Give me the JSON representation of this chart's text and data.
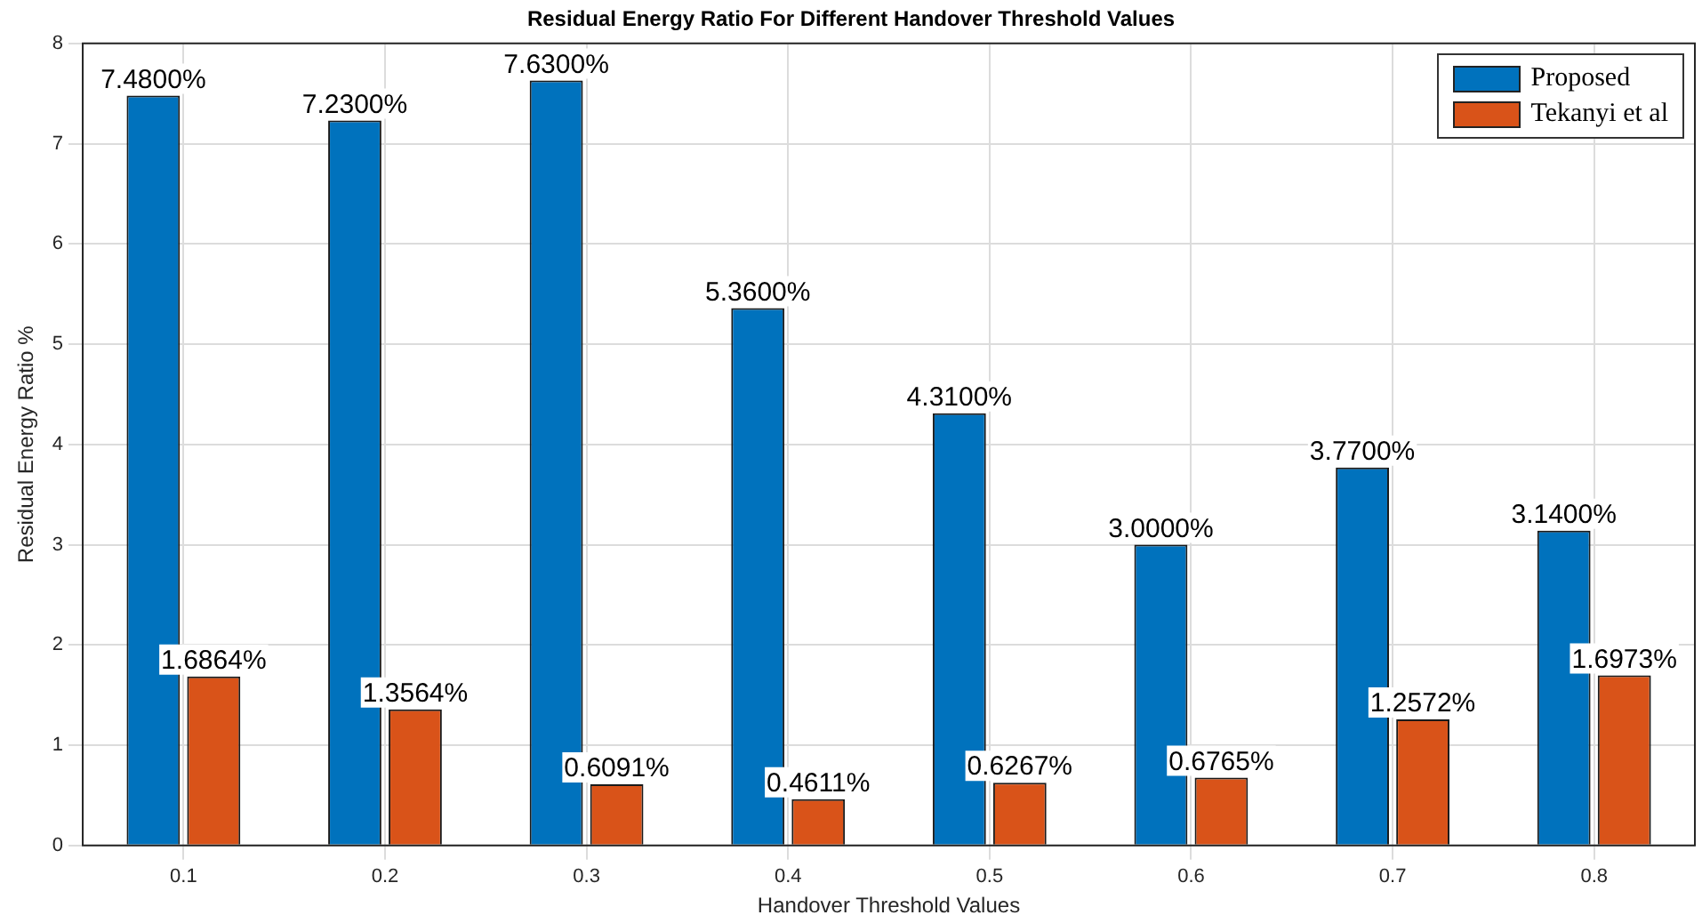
{
  "chart_data": {
    "type": "bar",
    "title": "Residual Energy Ratio For Different Handover Threshold Values",
    "xlabel": "Handover Threshold Values",
    "ylabel": "Residual Energy Ratio %",
    "categories": [
      "0.1",
      "0.2",
      "0.3",
      "0.4",
      "0.5",
      "0.6",
      "0.7",
      "0.8"
    ],
    "series": [
      {
        "name": "Proposed",
        "color": "#0072bd",
        "values": [
          7.48,
          7.23,
          7.63,
          5.36,
          4.31,
          3.0,
          3.77,
          3.14
        ],
        "value_labels": [
          "7.4800%",
          "7.2300%",
          "7.6300%",
          "5.3600%",
          "4.3100%",
          "3.0000%",
          "3.7700%",
          "3.1400%"
        ]
      },
      {
        "name": "Tekanyi et al",
        "color": "#d95319",
        "values": [
          1.6864,
          1.3564,
          0.6091,
          0.4611,
          0.6267,
          0.6765,
          1.2572,
          1.6973
        ],
        "value_labels": [
          "1.6864%",
          "1.3564%",
          "0.6091%",
          "0.4611%",
          "0.6267%",
          "0.6765%",
          "1.2572%",
          "1.6973%"
        ]
      }
    ],
    "ylim": [
      0,
      8
    ],
    "yticks": [
      0,
      1,
      2,
      3,
      4,
      5,
      6,
      7,
      8
    ],
    "grid": true,
    "legend": "top right"
  }
}
